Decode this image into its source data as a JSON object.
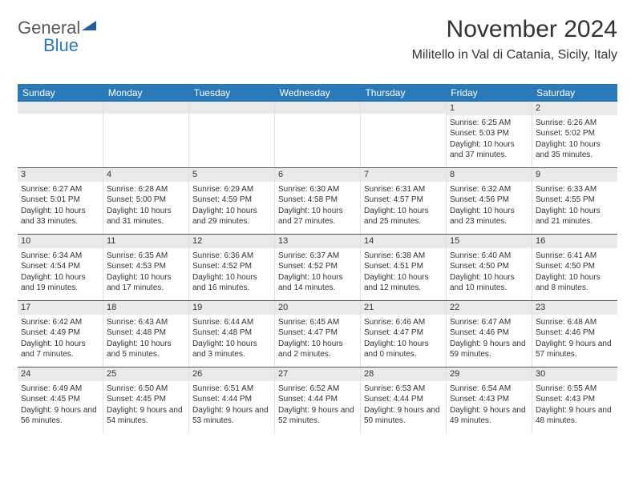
{
  "logo": {
    "text_general": "General",
    "text_blue": "Blue"
  },
  "header": {
    "title": "November 2024",
    "location": "Militello in Val di Catania, Sicily, Italy"
  },
  "colors": {
    "header_bar": "#2a7ab9",
    "daynum_bg": "#eaeaea",
    "text": "#333333",
    "logo_gray": "#5a5a5a",
    "logo_blue": "#2a7ab9",
    "row_border": "#555555",
    "cell_border": "#e0e0e0",
    "background": "#ffffff",
    "logo_triangle": "#1f5f99"
  },
  "days_of_week": [
    "Sunday",
    "Monday",
    "Tuesday",
    "Wednesday",
    "Thursday",
    "Friday",
    "Saturday"
  ],
  "weeks": [
    [
      null,
      null,
      null,
      null,
      null,
      {
        "num": "1",
        "sunrise": "Sunrise: 6:25 AM",
        "sunset": "Sunset: 5:03 PM",
        "daylight": "Daylight: 10 hours and 37 minutes."
      },
      {
        "num": "2",
        "sunrise": "Sunrise: 6:26 AM",
        "sunset": "Sunset: 5:02 PM",
        "daylight": "Daylight: 10 hours and 35 minutes."
      }
    ],
    [
      {
        "num": "3",
        "sunrise": "Sunrise: 6:27 AM",
        "sunset": "Sunset: 5:01 PM",
        "daylight": "Daylight: 10 hours and 33 minutes."
      },
      {
        "num": "4",
        "sunrise": "Sunrise: 6:28 AM",
        "sunset": "Sunset: 5:00 PM",
        "daylight": "Daylight: 10 hours and 31 minutes."
      },
      {
        "num": "5",
        "sunrise": "Sunrise: 6:29 AM",
        "sunset": "Sunset: 4:59 PM",
        "daylight": "Daylight: 10 hours and 29 minutes."
      },
      {
        "num": "6",
        "sunrise": "Sunrise: 6:30 AM",
        "sunset": "Sunset: 4:58 PM",
        "daylight": "Daylight: 10 hours and 27 minutes."
      },
      {
        "num": "7",
        "sunrise": "Sunrise: 6:31 AM",
        "sunset": "Sunset: 4:57 PM",
        "daylight": "Daylight: 10 hours and 25 minutes."
      },
      {
        "num": "8",
        "sunrise": "Sunrise: 6:32 AM",
        "sunset": "Sunset: 4:56 PM",
        "daylight": "Daylight: 10 hours and 23 minutes."
      },
      {
        "num": "9",
        "sunrise": "Sunrise: 6:33 AM",
        "sunset": "Sunset: 4:55 PM",
        "daylight": "Daylight: 10 hours and 21 minutes."
      }
    ],
    [
      {
        "num": "10",
        "sunrise": "Sunrise: 6:34 AM",
        "sunset": "Sunset: 4:54 PM",
        "daylight": "Daylight: 10 hours and 19 minutes."
      },
      {
        "num": "11",
        "sunrise": "Sunrise: 6:35 AM",
        "sunset": "Sunset: 4:53 PM",
        "daylight": "Daylight: 10 hours and 17 minutes."
      },
      {
        "num": "12",
        "sunrise": "Sunrise: 6:36 AM",
        "sunset": "Sunset: 4:52 PM",
        "daylight": "Daylight: 10 hours and 16 minutes."
      },
      {
        "num": "13",
        "sunrise": "Sunrise: 6:37 AM",
        "sunset": "Sunset: 4:52 PM",
        "daylight": "Daylight: 10 hours and 14 minutes."
      },
      {
        "num": "14",
        "sunrise": "Sunrise: 6:38 AM",
        "sunset": "Sunset: 4:51 PM",
        "daylight": "Daylight: 10 hours and 12 minutes."
      },
      {
        "num": "15",
        "sunrise": "Sunrise: 6:40 AM",
        "sunset": "Sunset: 4:50 PM",
        "daylight": "Daylight: 10 hours and 10 minutes."
      },
      {
        "num": "16",
        "sunrise": "Sunrise: 6:41 AM",
        "sunset": "Sunset: 4:50 PM",
        "daylight": "Daylight: 10 hours and 8 minutes."
      }
    ],
    [
      {
        "num": "17",
        "sunrise": "Sunrise: 6:42 AM",
        "sunset": "Sunset: 4:49 PM",
        "daylight": "Daylight: 10 hours and 7 minutes."
      },
      {
        "num": "18",
        "sunrise": "Sunrise: 6:43 AM",
        "sunset": "Sunset: 4:48 PM",
        "daylight": "Daylight: 10 hours and 5 minutes."
      },
      {
        "num": "19",
        "sunrise": "Sunrise: 6:44 AM",
        "sunset": "Sunset: 4:48 PM",
        "daylight": "Daylight: 10 hours and 3 minutes."
      },
      {
        "num": "20",
        "sunrise": "Sunrise: 6:45 AM",
        "sunset": "Sunset: 4:47 PM",
        "daylight": "Daylight: 10 hours and 2 minutes."
      },
      {
        "num": "21",
        "sunrise": "Sunrise: 6:46 AM",
        "sunset": "Sunset: 4:47 PM",
        "daylight": "Daylight: 10 hours and 0 minutes."
      },
      {
        "num": "22",
        "sunrise": "Sunrise: 6:47 AM",
        "sunset": "Sunset: 4:46 PM",
        "daylight": "Daylight: 9 hours and 59 minutes."
      },
      {
        "num": "23",
        "sunrise": "Sunrise: 6:48 AM",
        "sunset": "Sunset: 4:46 PM",
        "daylight": "Daylight: 9 hours and 57 minutes."
      }
    ],
    [
      {
        "num": "24",
        "sunrise": "Sunrise: 6:49 AM",
        "sunset": "Sunset: 4:45 PM",
        "daylight": "Daylight: 9 hours and 56 minutes."
      },
      {
        "num": "25",
        "sunrise": "Sunrise: 6:50 AM",
        "sunset": "Sunset: 4:45 PM",
        "daylight": "Daylight: 9 hours and 54 minutes."
      },
      {
        "num": "26",
        "sunrise": "Sunrise: 6:51 AM",
        "sunset": "Sunset: 4:44 PM",
        "daylight": "Daylight: 9 hours and 53 minutes."
      },
      {
        "num": "27",
        "sunrise": "Sunrise: 6:52 AM",
        "sunset": "Sunset: 4:44 PM",
        "daylight": "Daylight: 9 hours and 52 minutes."
      },
      {
        "num": "28",
        "sunrise": "Sunrise: 6:53 AM",
        "sunset": "Sunset: 4:44 PM",
        "daylight": "Daylight: 9 hours and 50 minutes."
      },
      {
        "num": "29",
        "sunrise": "Sunrise: 6:54 AM",
        "sunset": "Sunset: 4:43 PM",
        "daylight": "Daylight: 9 hours and 49 minutes."
      },
      {
        "num": "30",
        "sunrise": "Sunrise: 6:55 AM",
        "sunset": "Sunset: 4:43 PM",
        "daylight": "Daylight: 9 hours and 48 minutes."
      }
    ]
  ]
}
